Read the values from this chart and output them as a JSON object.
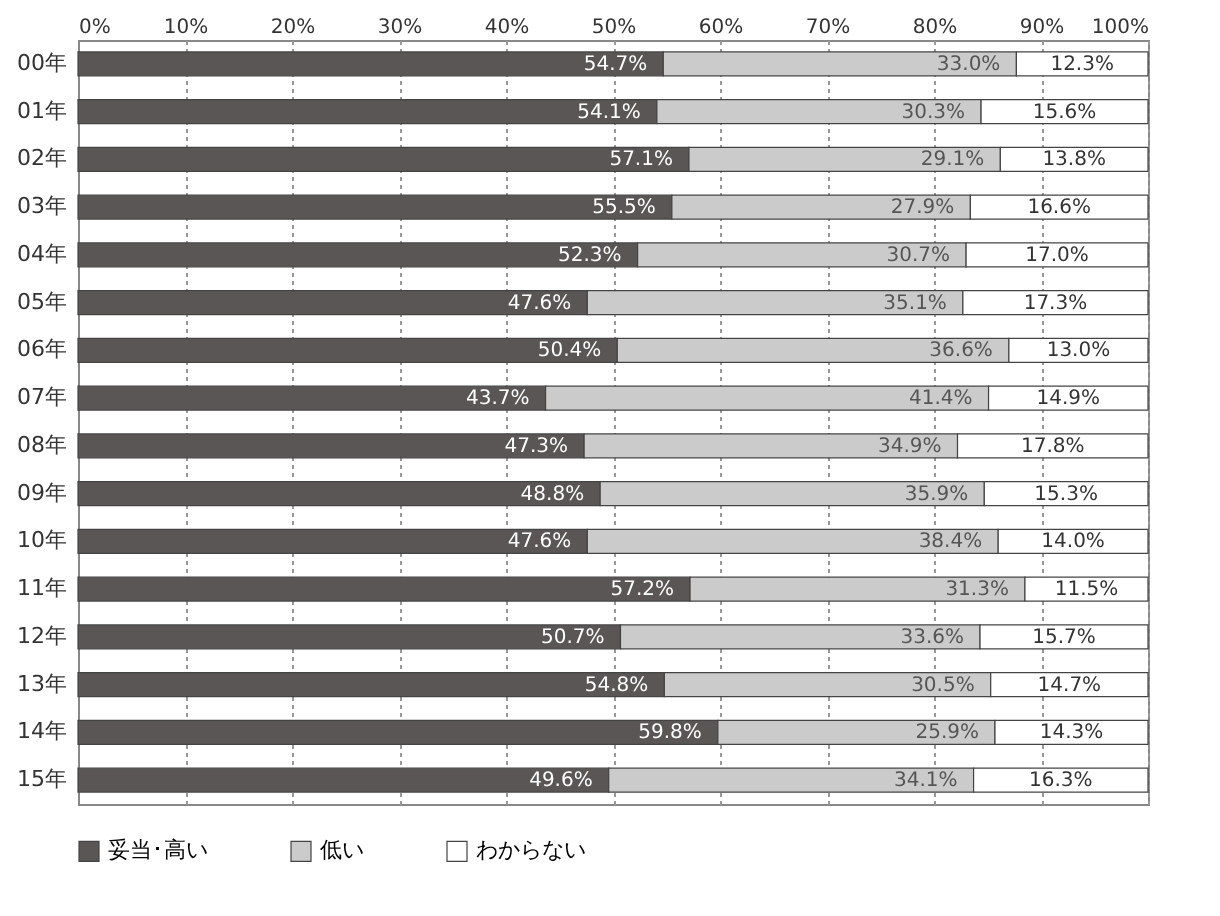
{
  "chart_data": {
    "type": "bar",
    "orientation": "horizontal",
    "stacked": true,
    "categories": [
      "00年",
      "01年",
      "02年",
      "03年",
      "04年",
      "05年",
      "06年",
      "07年",
      "08年",
      "09年",
      "10年",
      "11年",
      "12年",
      "13年",
      "14年",
      "15年"
    ],
    "series": [
      {
        "name": "妥当･高い",
        "color": "#5a5656",
        "values": [
          54.7,
          54.1,
          57.1,
          55.5,
          52.3,
          47.6,
          50.4,
          43.7,
          47.3,
          48.8,
          47.6,
          57.2,
          50.7,
          54.8,
          59.8,
          49.6
        ],
        "value_labels": [
          "54.7%",
          "54.1%",
          "57.1%",
          "55.5%",
          "52.3%",
          "47.6%",
          "50.4%",
          "43.7%",
          "47.3%",
          "48.8%",
          "47.6%",
          "57.2%",
          "50.7%",
          "54.8%",
          "59.8%",
          "49.6%"
        ]
      },
      {
        "name": "低い",
        "color": "#cbcbcb",
        "values": [
          33.0,
          30.3,
          29.1,
          27.9,
          30.7,
          35.1,
          36.6,
          41.4,
          34.9,
          35.9,
          38.4,
          31.3,
          33.6,
          30.5,
          25.9,
          34.1
        ],
        "value_labels": [
          "33.0%",
          "30.3%",
          "29.1%",
          "27.9%",
          "30.7%",
          "35.1%",
          "36.6%",
          "41.4%",
          "34.9%",
          "35.9%",
          "38.4%",
          "31.3%",
          "33.6%",
          "30.5%",
          "25.9%",
          "34.1%"
        ]
      },
      {
        "name": "わからない",
        "color": "#ffffff",
        "values": [
          12.3,
          15.6,
          13.8,
          16.6,
          17.0,
          17.3,
          13.0,
          14.9,
          17.8,
          15.3,
          14.0,
          11.5,
          15.7,
          14.7,
          14.3,
          16.3
        ],
        "value_labels": [
          "12.3%",
          "15.6%",
          "13.8%",
          "16.6%",
          "17.0%",
          "17.3%",
          "13.0%",
          "14.9%",
          "17.8%",
          "15.3%",
          "14.0%",
          "11.5%",
          "15.7%",
          "14.7%",
          "14.3%",
          "16.3%"
        ]
      }
    ],
    "xlim": [
      0,
      100
    ],
    "xticks": [
      {
        "value": 0,
        "label": "0%"
      },
      {
        "value": 10,
        "label": "10%"
      },
      {
        "value": 20,
        "label": "20%"
      },
      {
        "value": 30,
        "label": "30%"
      },
      {
        "value": 40,
        "label": "40%"
      },
      {
        "value": 50,
        "label": "50%"
      },
      {
        "value": 60,
        "label": "60%"
      },
      {
        "value": 70,
        "label": "70%"
      },
      {
        "value": 80,
        "label": "80%"
      },
      {
        "value": 90,
        "label": "90%"
      },
      {
        "value": 100,
        "label": "100%"
      }
    ],
    "grid": "x",
    "legend": "bottom"
  }
}
